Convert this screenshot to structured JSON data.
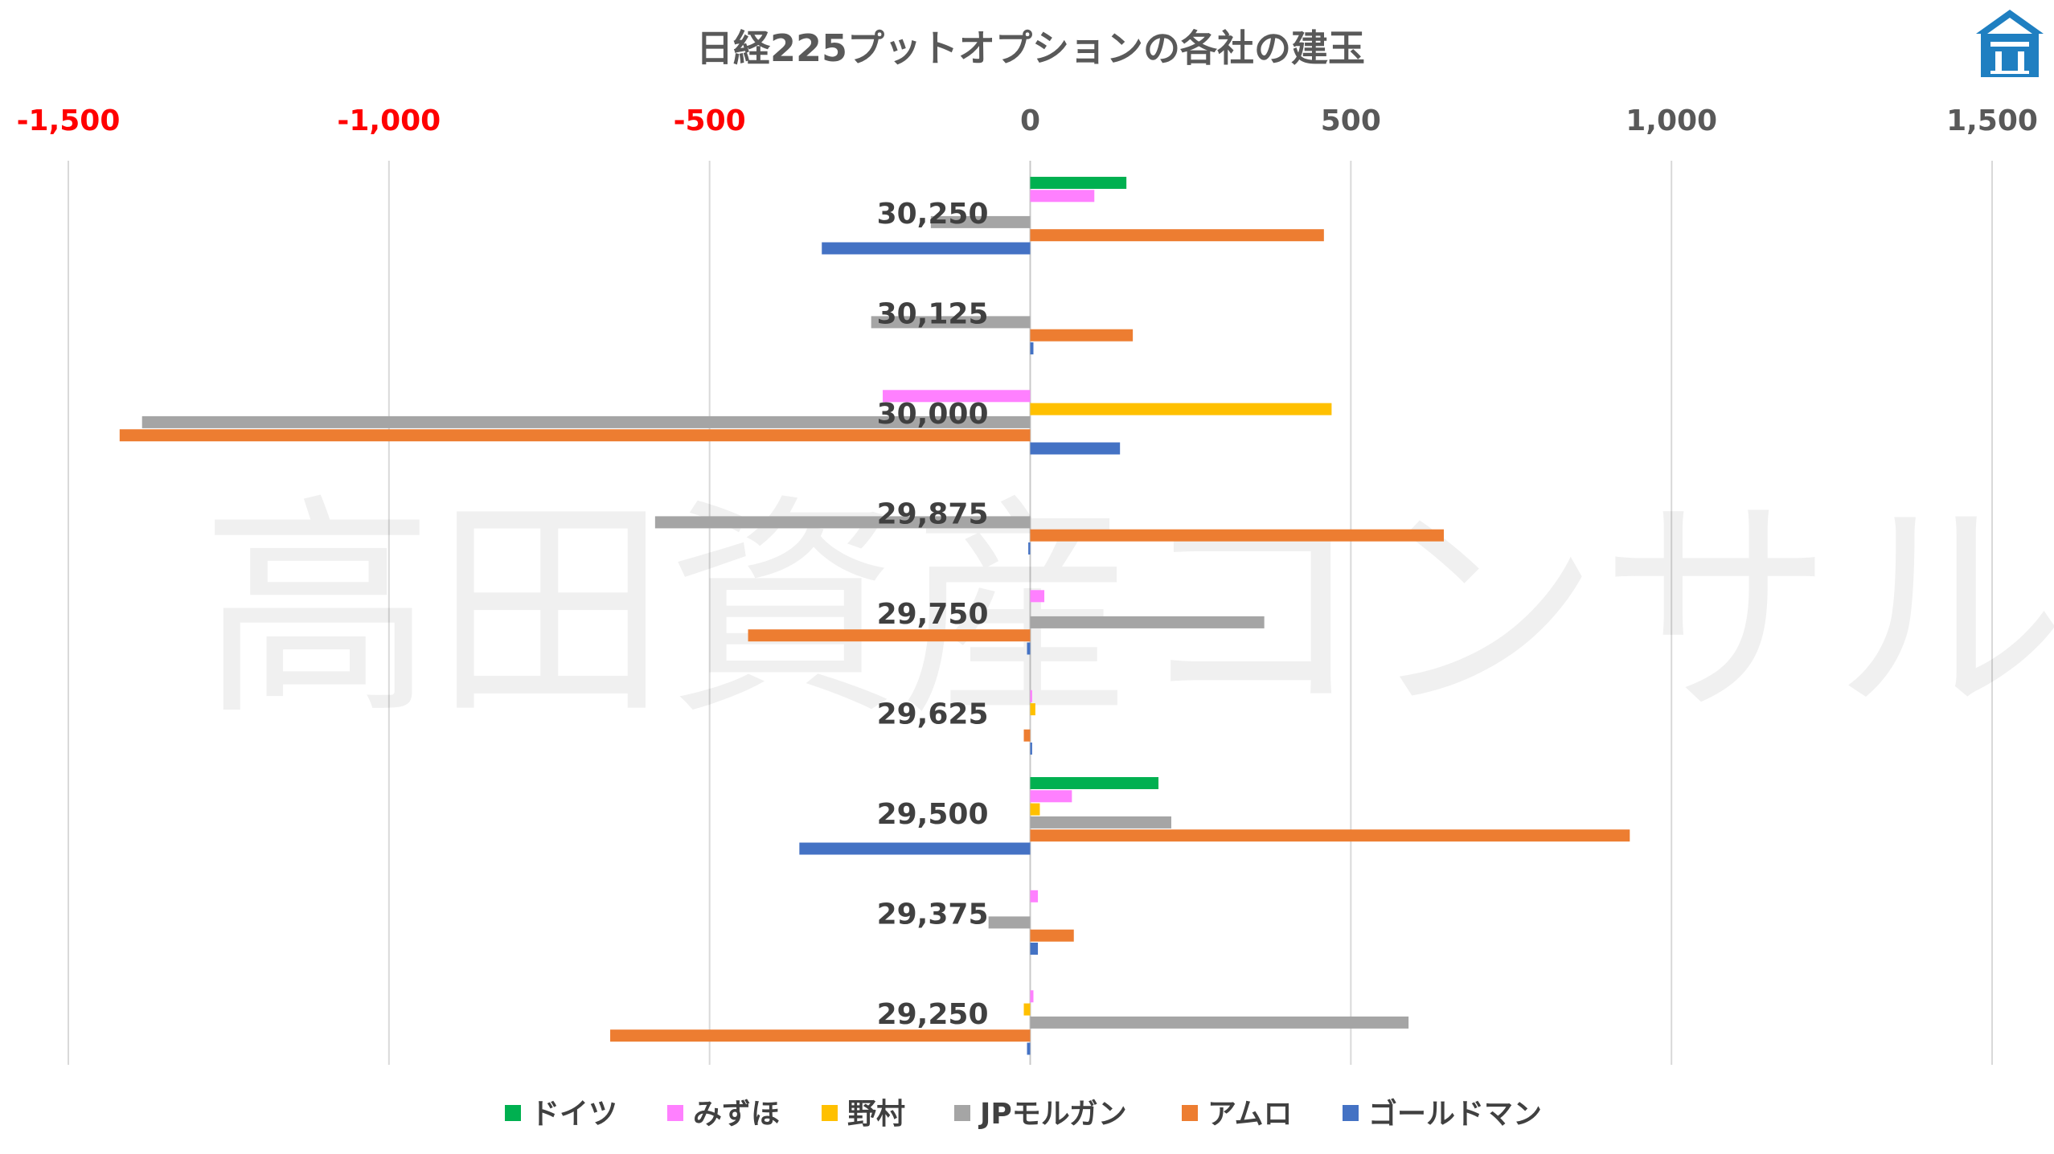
{
  "watermark": "高田資産コンサル",
  "logo": {
    "icon": "house-logo-icon",
    "color": "#1f7fc1"
  },
  "chart_data": {
    "type": "bar",
    "orientation": "horizontal",
    "title": "日経225プットオプションの各社の建玉",
    "xlim": [
      -1500,
      1500
    ],
    "x_ticks": [
      {
        "value": -1500,
        "label": "-1,500",
        "color": "#ff0000"
      },
      {
        "value": -1000,
        "label": "-1,000",
        "color": "#ff0000"
      },
      {
        "value": -500,
        "label": "-500",
        "color": "#ff0000"
      },
      {
        "value": 0,
        "label": "0",
        "color": "#595959"
      },
      {
        "value": 500,
        "label": "500",
        "color": "#595959"
      },
      {
        "value": 1000,
        "label": "1,000",
        "color": "#595959"
      },
      {
        "value": 1500,
        "label": "1,500",
        "color": "#595959"
      }
    ],
    "x_axis_position": "top",
    "grid": true,
    "legend_position": "bottom",
    "categories": [
      "30,250",
      "30,125",
      "30,000",
      "29,875",
      "29,750",
      "29,625",
      "29,500",
      "29,375",
      "29,250"
    ],
    "series": [
      {
        "name": "ドイツ",
        "color": "#00b050",
        "values": [
          150,
          0,
          0,
          0,
          0,
          0,
          200,
          0,
          0
        ]
      },
      {
        "name": "みずほ",
        "color": "#ff80ff",
        "values": [
          100,
          0,
          -230,
          0,
          22,
          3,
          65,
          12,
          5
        ]
      },
      {
        "name": "野村",
        "color": "#ffc000",
        "values": [
          0,
          0,
          470,
          0,
          0,
          8,
          15,
          0,
          -10
        ]
      },
      {
        "name": "JPモルガン",
        "color": "#a5a5a5",
        "values": [
          -155,
          -248,
          -1385,
          -585,
          365,
          0,
          220,
          -65,
          590
        ]
      },
      {
        "name": "アムロ",
        "color": "#ed7d31",
        "values": [
          458,
          160,
          -1420,
          645,
          -440,
          -10,
          935,
          68,
          -655
        ]
      },
      {
        "name": "ゴールドマン",
        "color": "#4472c4",
        "values": [
          -325,
          5,
          140,
          -3,
          -5,
          3,
          -360,
          12,
          -5
        ]
      }
    ]
  }
}
